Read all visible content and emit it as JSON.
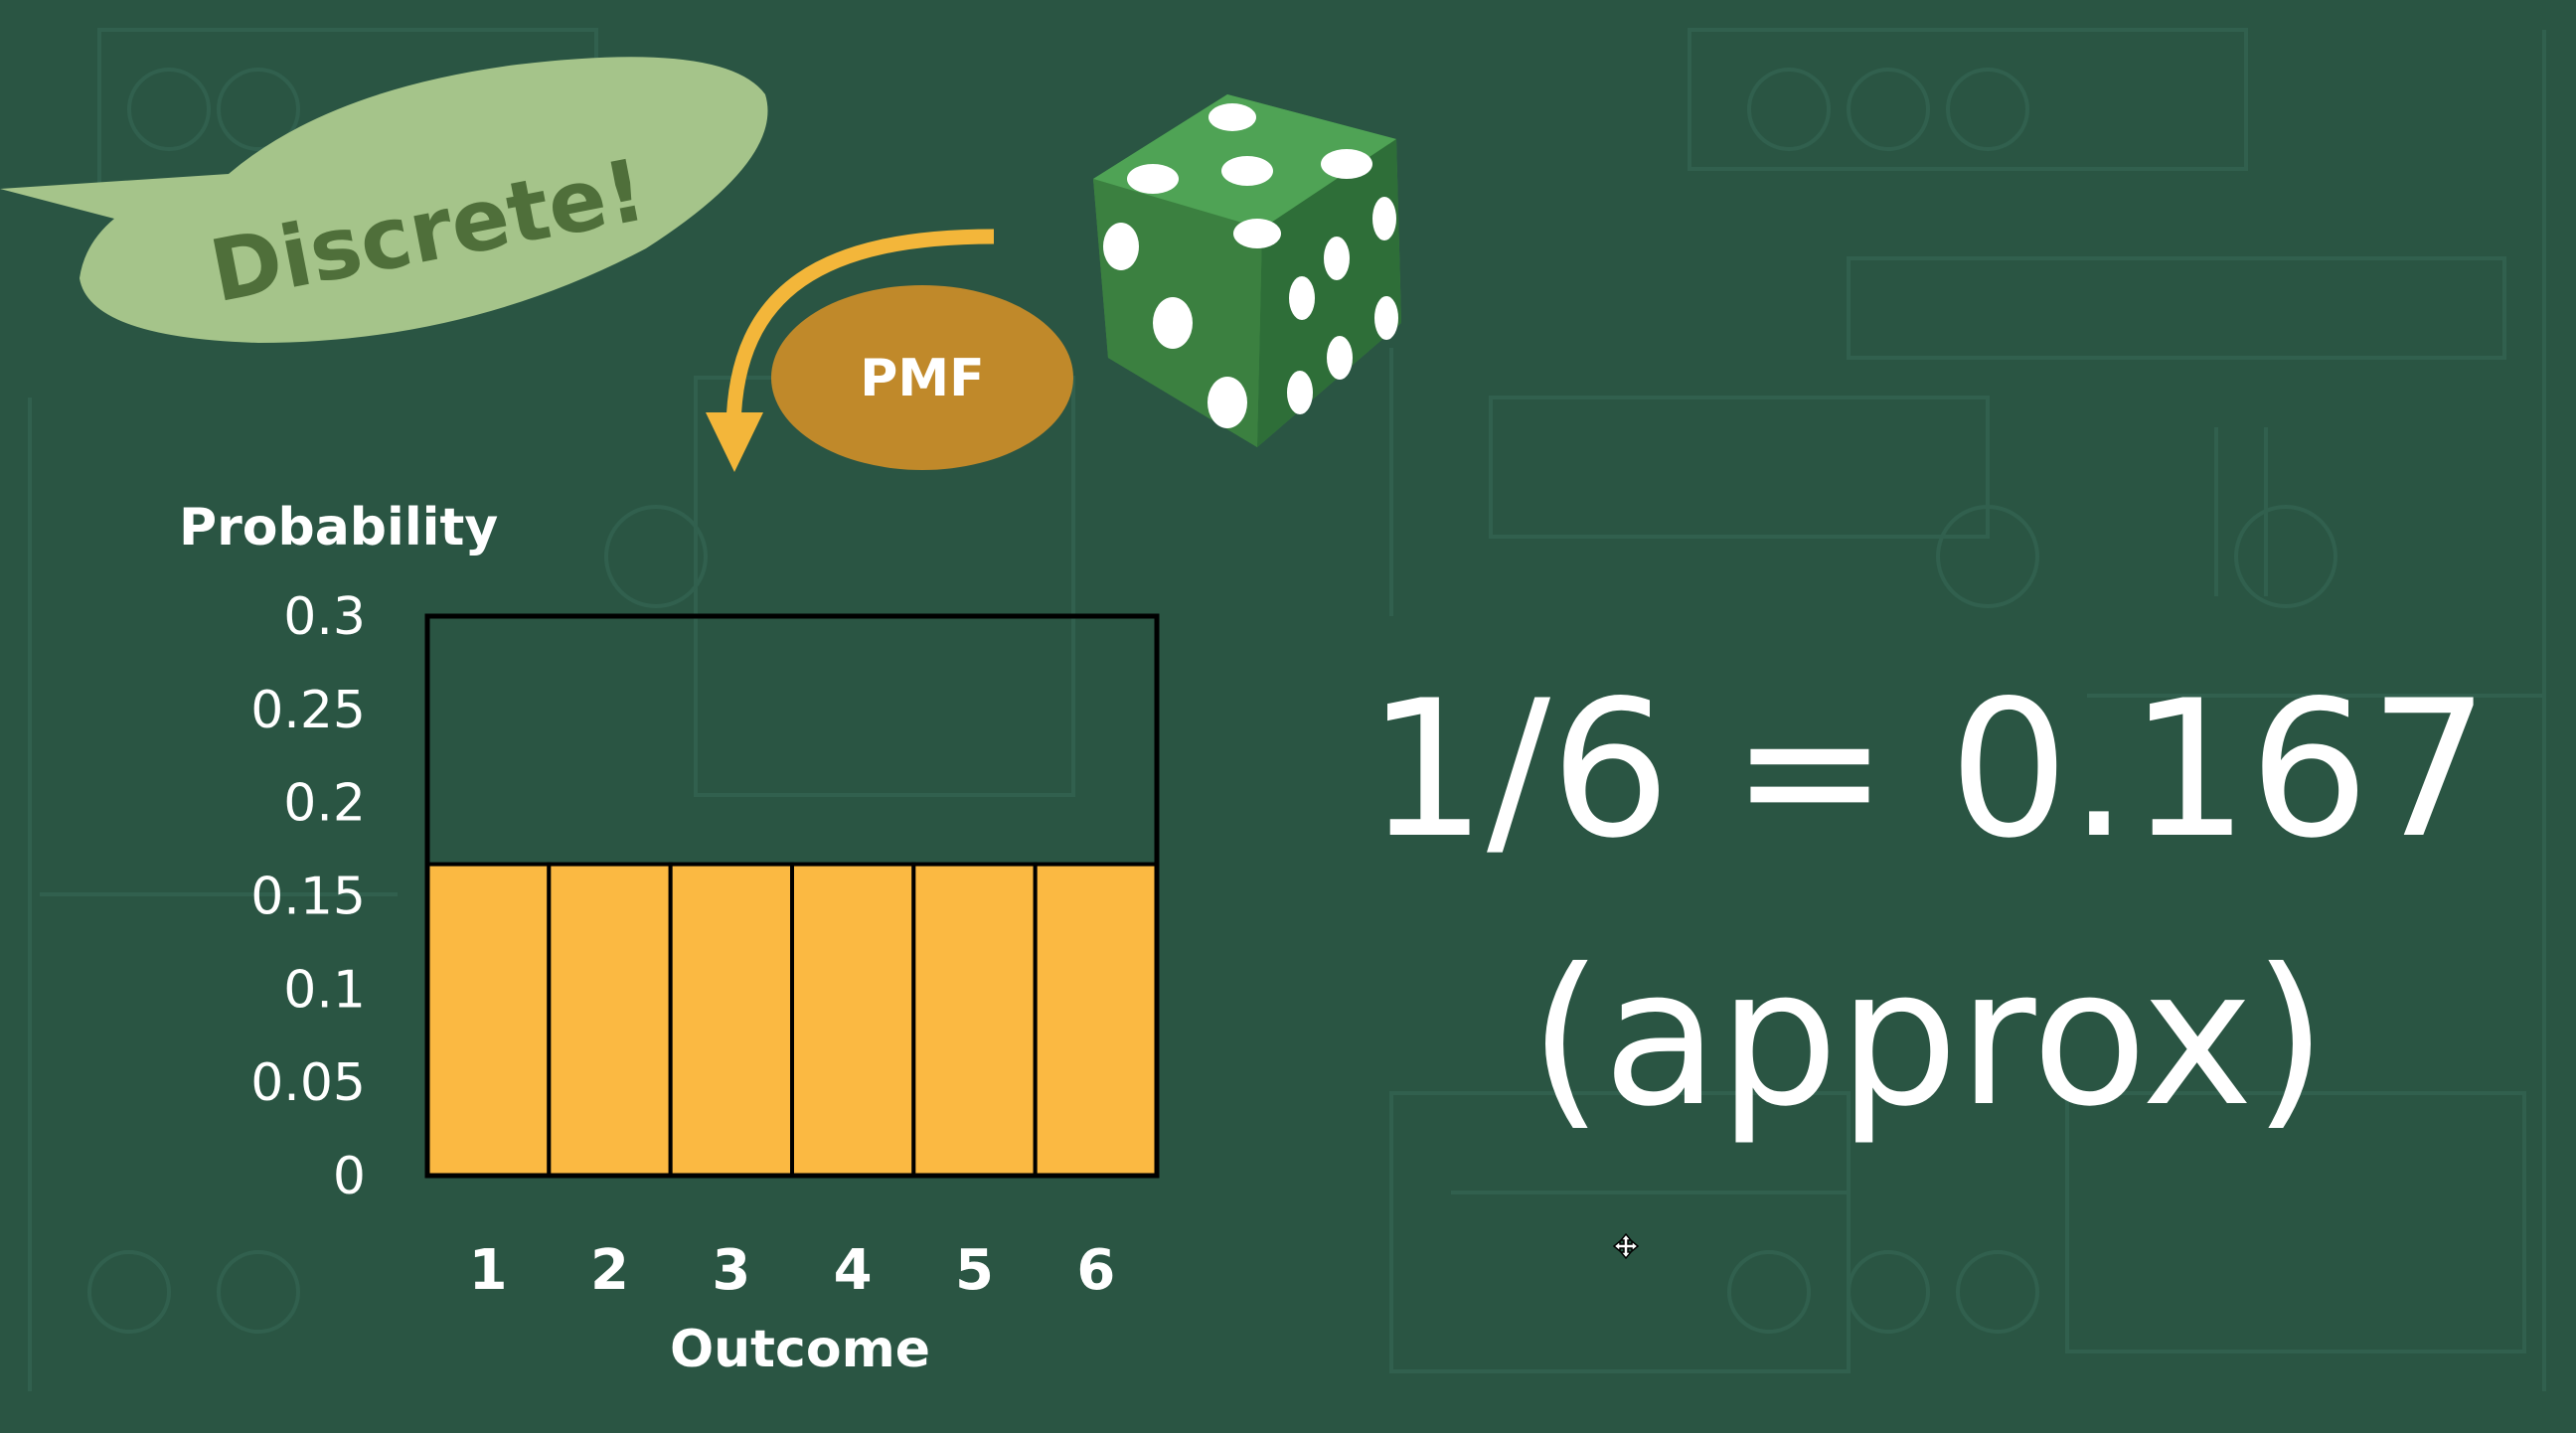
{
  "speech_bubble": {
    "text": "Discrete!"
  },
  "pmf_label": "PMF",
  "main_text": {
    "formula": "1/6 = 0.167",
    "note": "(approx)"
  },
  "colors": {
    "background": "#2a5543",
    "bar_fill": "#fbb942",
    "speech_bubble": "#a5c48a",
    "pmf_badge": "#c0892a",
    "arrow": "#f3b63a"
  },
  "icons": [
    "speech-bubble",
    "curved-arrow",
    "die",
    "cursor-move-icon"
  ],
  "chart_data": {
    "type": "bar",
    "categories": [
      "1",
      "2",
      "3",
      "4",
      "5",
      "6"
    ],
    "values": [
      0.167,
      0.167,
      0.167,
      0.167,
      0.167,
      0.167
    ],
    "ylabel": "Probability",
    "xlabel": "Outcome",
    "ylim": [
      0,
      0.3
    ],
    "yticks": [
      "0",
      "0.05",
      "0.1",
      "0.15",
      "0.2",
      "0.25",
      "0.3"
    ],
    "grid": false,
    "legend": "none"
  }
}
